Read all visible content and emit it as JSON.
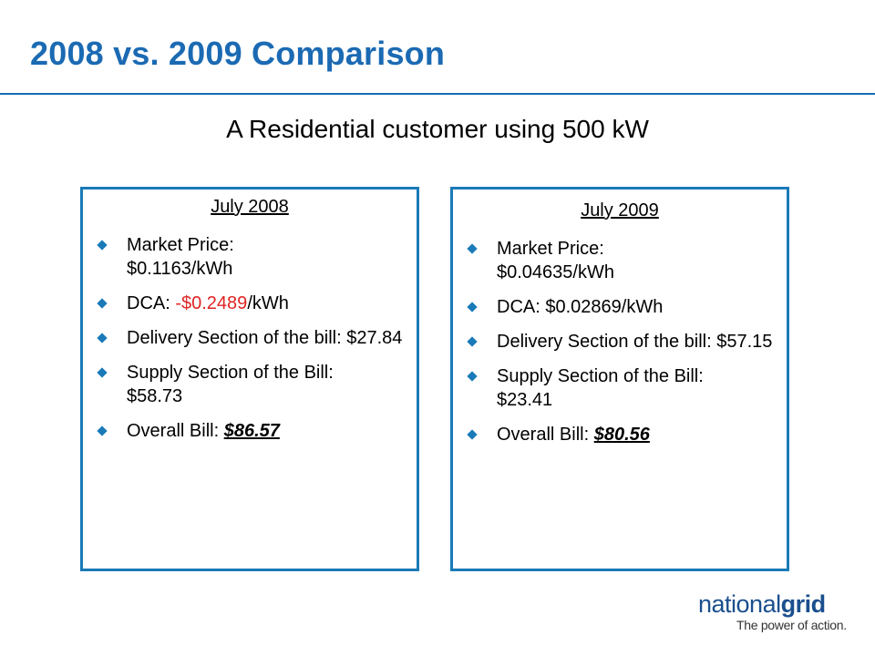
{
  "slide": {
    "title": "2008 vs. 2009 Comparison",
    "subtitle": "A Residential  customer using 500 kW"
  },
  "panels": [
    {
      "heading": "July 2008",
      "market_price": {
        "label": "Market Price:",
        "value": "$0.1163/kWh"
      },
      "dca": {
        "label": "DCA: ",
        "value": "-$0.2489",
        "unit": "/kWh",
        "value_color": "#e02424"
      },
      "delivery": {
        "label": "Delivery Section of the bill: ",
        "value": "$27.84"
      },
      "supply": {
        "label": "Supply Section of the Bill:",
        "value": "$58.73"
      },
      "overall": {
        "label": "Overall Bill: ",
        "value": "$86.57"
      }
    },
    {
      "heading": "July 2009",
      "market_price": {
        "label": "Market Price:",
        "value": "$0.04635/kWh"
      },
      "dca": {
        "label": "DCA: ",
        "value": "$0.02869",
        "unit": "/kWh"
      },
      "delivery": {
        "label": "Delivery Section of the bill: ",
        "value": "$57.15"
      },
      "supply": {
        "label": "Supply Section of the Bill:",
        "value": "$23.41"
      },
      "overall": {
        "label": "Overall Bill: ",
        "value": "$80.56"
      }
    }
  ],
  "logo": {
    "name_regular": "national",
    "name_bold": "grid",
    "tagline": "The power of action."
  },
  "colors": {
    "title": "#1b6ab3",
    "panel_border": "#1a7ab8",
    "bullet": "#1a7ab8",
    "negative_value": "#e02424",
    "logo_text": "#1b4f8e"
  }
}
